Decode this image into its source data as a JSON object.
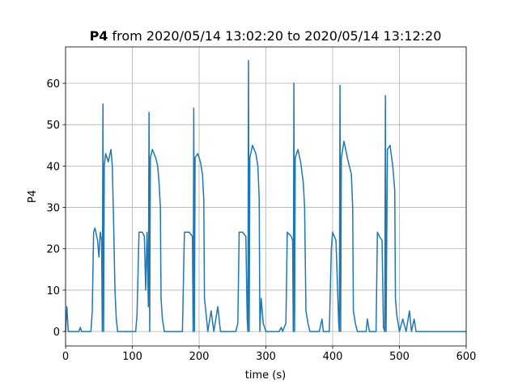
{
  "chart_data": {
    "type": "line",
    "title": {
      "bold": "P4",
      "text": "from 2020/05/14 13:02:20 to 2020/05/14 13:12:20"
    },
    "x_label": "time (s)",
    "y_label": "P4",
    "color": "#1f77b4",
    "grid": true,
    "xlim": [
      0,
      600
    ],
    "xticks": [
      0,
      100,
      200,
      300,
      400,
      500,
      600
    ],
    "ylim": [
      -3.5,
      68.8
    ],
    "yticks": [
      0,
      10,
      20,
      30,
      40,
      50,
      60
    ],
    "x": [
      0,
      2,
      4,
      20,
      22,
      24,
      38,
      40,
      42,
      44,
      48,
      50,
      52,
      54,
      55,
      56,
      57,
      58,
      60,
      64,
      68,
      70,
      72,
      74,
      76,
      78,
      105,
      107,
      110,
      115,
      118,
      120,
      122,
      124,
      125,
      126,
      127,
      130,
      135,
      138,
      140,
      142,
      143,
      145,
      148,
      175,
      178,
      185,
      190,
      191,
      192,
      193,
      194,
      198,
      202,
      205,
      207,
      208,
      210,
      213,
      218,
      222,
      228,
      232,
      255,
      258,
      260,
      265,
      270,
      272,
      273,
      274,
      275,
      276,
      280,
      285,
      288,
      290,
      291,
      293,
      296,
      300,
      320,
      323,
      325,
      330,
      332,
      338,
      340,
      341,
      342,
      343,
      344,
      348,
      352,
      356,
      358,
      360,
      363,
      366,
      380,
      384,
      386,
      395,
      398,
      400,
      405,
      409,
      410,
      411,
      412,
      413,
      417,
      422,
      428,
      430,
      431,
      434,
      437,
      450,
      452,
      455,
      465,
      467,
      470,
      474,
      476,
      478,
      479,
      480,
      482,
      486,
      490,
      493,
      494,
      496,
      500,
      505,
      510,
      515,
      518,
      522,
      525,
      530,
      600
    ],
    "values": [
      0,
      6,
      0,
      0,
      1,
      0,
      0,
      5,
      24,
      25,
      22,
      18,
      24,
      22,
      0,
      55,
      0,
      40,
      43,
      41,
      44,
      40,
      26,
      10,
      3,
      0,
      0,
      4,
      24,
      24,
      23,
      10,
      24,
      6,
      53,
      0,
      42,
      44,
      42,
      40,
      36,
      30,
      8,
      3,
      0,
      0,
      24,
      24,
      23,
      0,
      54,
      0,
      42,
      43,
      41,
      38,
      32,
      8,
      5,
      0,
      5,
      0,
      6,
      0,
      0,
      2,
      24,
      24,
      23,
      3,
      0,
      65.5,
      0,
      42,
      45,
      43,
      40,
      32,
      0,
      8,
      2,
      0,
      0,
      1,
      0,
      2,
      24,
      23,
      22,
      0,
      60,
      0,
      42,
      44,
      41,
      36,
      30,
      5,
      2,
      0,
      0,
      3,
      0,
      0,
      20,
      24,
      22,
      2,
      0,
      59.5,
      0,
      42,
      46,
      42,
      38,
      30,
      5,
      2,
      0,
      0,
      3,
      0,
      0,
      24,
      23,
      22,
      1,
      0,
      57,
      0,
      44,
      45,
      40,
      34,
      8,
      4,
      0,
      3,
      0,
      5,
      0,
      3,
      0,
      0,
      0
    ]
  }
}
